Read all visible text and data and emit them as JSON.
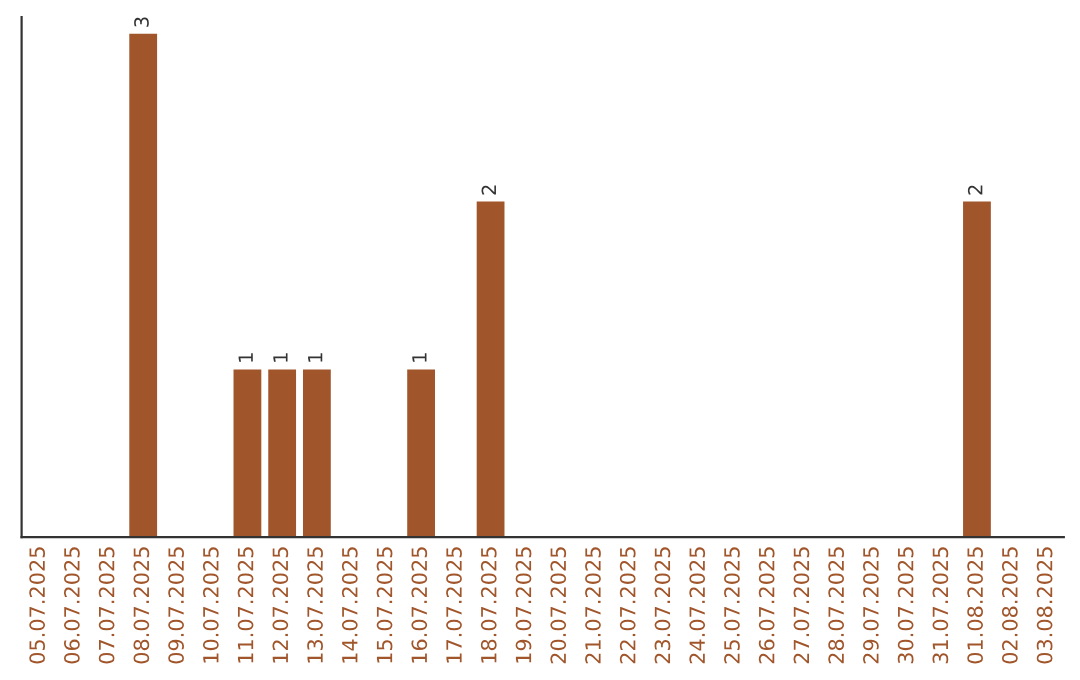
{
  "chart_data": {
    "type": "bar",
    "categories": [
      "05.07.2025",
      "06.07.2025",
      "07.07.2025",
      "08.07.2025",
      "09.07.2025",
      "10.07.2025",
      "11.07.2025",
      "12.07.2025",
      "13.07.2025",
      "14.07.2025",
      "15.07.2025",
      "16.07.2025",
      "17.07.2025",
      "18.07.2025",
      "19.07.2025",
      "20.07.2025",
      "21.07.2025",
      "22.07.2025",
      "23.07.2025",
      "24.07.2025",
      "25.07.2025",
      "26.07.2025",
      "27.07.2025",
      "28.07.2025",
      "29.07.2025",
      "30.07.2025",
      "31.07.2025",
      "01.08.2025",
      "02.08.2025",
      "03.08.2025"
    ],
    "values": [
      0,
      0,
      0,
      3,
      0,
      0,
      1,
      1,
      1,
      0,
      0,
      1,
      0,
      2,
      0,
      0,
      0,
      0,
      0,
      0,
      0,
      0,
      0,
      0,
      0,
      0,
      0,
      2,
      0,
      0
    ],
    "value_labels": [
      null,
      null,
      null,
      "3",
      null,
      null,
      "1",
      "1",
      "1",
      null,
      null,
      "1",
      null,
      "2",
      null,
      null,
      null,
      null,
      null,
      null,
      null,
      null,
      null,
      null,
      null,
      null,
      null,
      "2",
      null,
      null
    ],
    "color": "#a0552a",
    "ylim": [
      0,
      3.1
    ],
    "tick_labels": "x",
    "grid": false,
    "legend": false
  }
}
